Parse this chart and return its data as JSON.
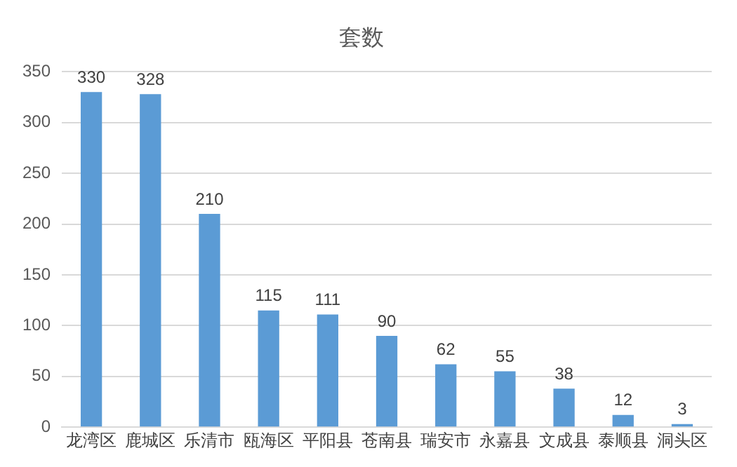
{
  "chart_data": {
    "type": "bar",
    "title": "套数",
    "categories": [
      "龙湾区",
      "鹿城区",
      "乐清市",
      "瓯海区",
      "平阳县",
      "苍南县",
      "瑞安市",
      "永嘉县",
      "文成县",
      "泰顺县",
      "洞头区"
    ],
    "values": [
      330,
      328,
      210,
      115,
      111,
      90,
      62,
      55,
      38,
      12,
      3
    ],
    "color": "#5b9bd5",
    "ylim": [
      0,
      350
    ],
    "yticks": [
      0,
      50,
      100,
      150,
      200,
      250,
      300,
      350
    ],
    "grid": "y",
    "data_labels": true
  }
}
